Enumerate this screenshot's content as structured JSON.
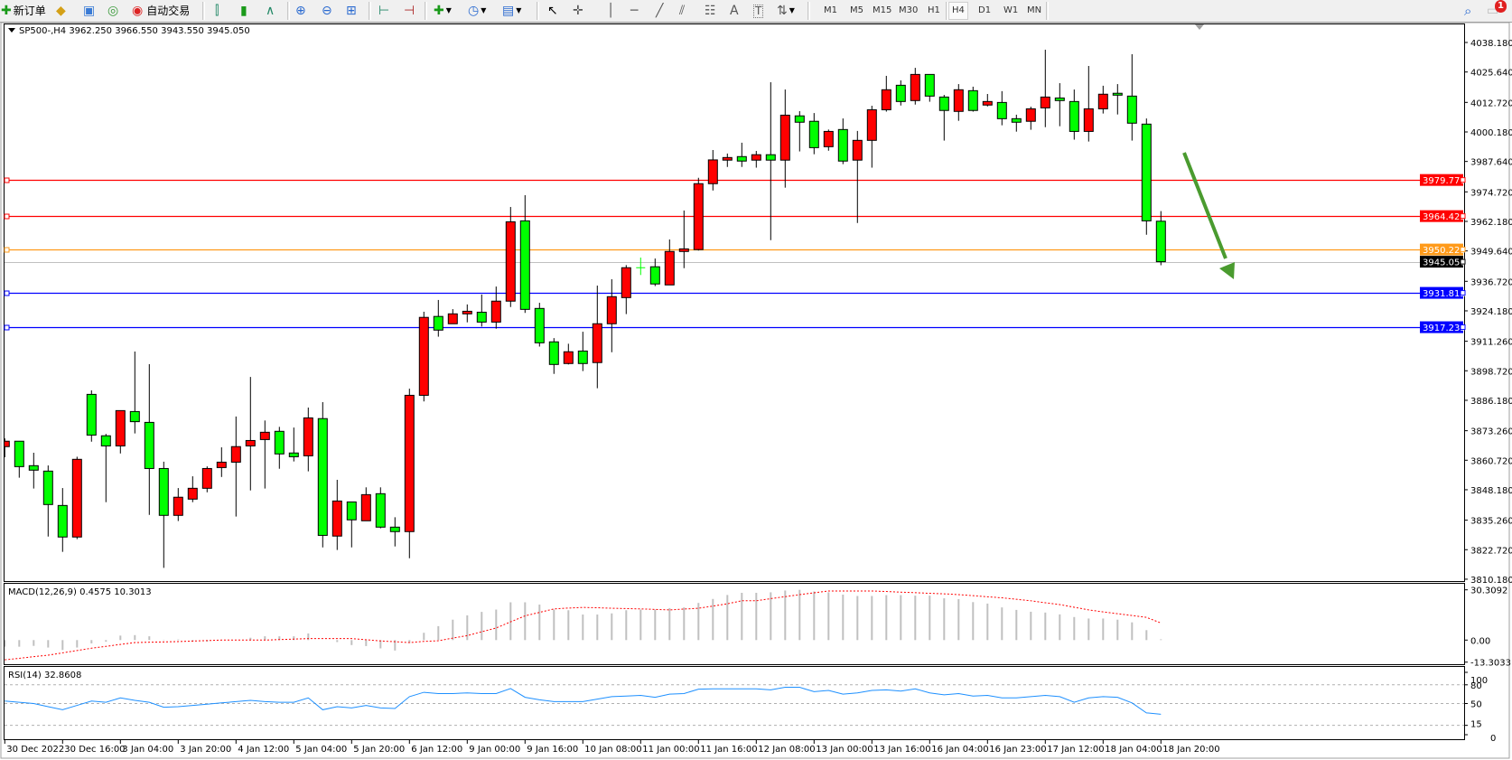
{
  "toolbar": {
    "new_order_label": "新订单",
    "auto_trading_label": "自动交易",
    "timeframes": [
      "M1",
      "M5",
      "M15",
      "M30",
      "H1",
      "H4",
      "D1",
      "W1",
      "MN"
    ],
    "active_timeframe": "H4",
    "notification_count": "1",
    "text_tool": "A",
    "label_tool": "T"
  },
  "chart": {
    "header": "SP500-,H4  3962.250 3966.550 3943.550 3945.050",
    "colors": {
      "bull": "#ff0000",
      "bear": "#00ff00",
      "outline": "#000000",
      "arrow": "#4a9b2f"
    },
    "price_ticks": [
      "4038.180",
      "4025.640",
      "4012.720",
      "4000.180",
      "3987.640",
      "3974.720",
      "3962.180",
      "3949.640",
      "3936.720",
      "3924.180",
      "3911.260",
      "3898.720",
      "3886.180",
      "3873.260",
      "3860.720",
      "3848.180",
      "3835.260",
      "3822.720",
      "3810.180"
    ],
    "levels": [
      {
        "price": "3979.770",
        "color": "#ff0000",
        "text_color": "#ffffff"
      },
      {
        "price": "3964.423",
        "color": "#ff0000",
        "text_color": "#ffffff"
      },
      {
        "price": "3950.228",
        "color": "#ff9a1a",
        "text_color": "#ffffff"
      },
      {
        "price": "3931.812",
        "color": "#0000ff",
        "text_color": "#ffffff"
      },
      {
        "price": "3917.233",
        "color": "#0000ff",
        "text_color": "#ffffff"
      }
    ],
    "bid": {
      "price": "3945.050",
      "line_color": "#c0c0c0",
      "label_bg": "#000000"
    },
    "time_labels": [
      "30 Dec 2022",
      "30 Dec 16:00",
      "3 Jan 04:00",
      "3 Jan 20:00",
      "4 Jan 12:00",
      "5 Jan 04:00",
      "5 Jan 20:00",
      "6 Jan 12:00",
      "9 Jan 00:00",
      "9 Jan 16:00",
      "10 Jan 08:00",
      "11 Jan 00:00",
      "11 Jan 16:00",
      "12 Jan 08:00",
      "13 Jan 00:00",
      "13 Jan 16:00",
      "16 Jan 04:00",
      "16 Jan 23:00",
      "17 Jan 12:00",
      "18 Jan 04:00",
      "18 Jan 20:00"
    ],
    "arrow": {
      "direction": "down",
      "from_price": 3990.5,
      "to_price": 3937.0
    }
  },
  "macd": {
    "label": "MACD(12,26,9) 0.4575 10.3013",
    "axis": [
      "30.3092",
      "0.00",
      "-13.3033"
    ],
    "signal_color": "#ff0000",
    "hist_color": "#c0c0c0"
  },
  "rsi": {
    "label": "RSI(14) 32.8608",
    "axis": [
      "100",
      "80",
      "50",
      "15",
      "0"
    ],
    "line_color": "#1e90ff"
  },
  "chart_data": {
    "type": "candlestick",
    "symbol": "SP500-",
    "timeframe": "H4",
    "ylim": [
      3809.4,
      4045.9
    ],
    "ohlc": [
      [
        3866.5,
        3870.0,
        3862.0,
        3868.8
      ],
      [
        3868.8,
        3868.8,
        3853.3,
        3858.0
      ],
      [
        3858.4,
        3863.9,
        3848.7,
        3856.5
      ],
      [
        3856.1,
        3858.5,
        3828.3,
        3841.9
      ],
      [
        3841.5,
        3848.9,
        3821.8,
        3828.1
      ],
      [
        3828.1,
        3862.2,
        3827.2,
        3861.1
      ],
      [
        3888.7,
        3890.4,
        3868.6,
        3871.4
      ],
      [
        3871.1,
        3871.9,
        3842.9,
        3866.8
      ],
      [
        3866.8,
        3881.8,
        3863.6,
        3881.8
      ],
      [
        3881.4,
        3906.9,
        3872.1,
        3877.1
      ],
      [
        3876.8,
        3901.5,
        3837.5,
        3857.2
      ],
      [
        3857.2,
        3860.1,
        3815.0,
        3837.3
      ],
      [
        3837.3,
        3848.9,
        3834.9,
        3845.0
      ],
      [
        3844.2,
        3853.9,
        3842.9,
        3848.8
      ],
      [
        3848.8,
        3858.1,
        3847.1,
        3857.2
      ],
      [
        3857.6,
        3866.2,
        3853.6,
        3859.9
      ],
      [
        3859.9,
        3879.3,
        3836.8,
        3866.5
      ],
      [
        3866.8,
        3896.1,
        3847.9,
        3869.1
      ],
      [
        3869.5,
        3877.6,
        3848.7,
        3872.6
      ],
      [
        3873.0,
        3874.9,
        3857.1,
        3863.4
      ],
      [
        3863.8,
        3874.6,
        3860.2,
        3862.2
      ],
      [
        3862.6,
        3883.1,
        3856.0,
        3878.7
      ],
      [
        3878.4,
        3885.4,
        3823.7,
        3828.8
      ],
      [
        3828.5,
        3852.4,
        3822.6,
        3843.4
      ],
      [
        3843.0,
        3843.0,
        3823.7,
        3835.4
      ],
      [
        3835.0,
        3849.2,
        3835.0,
        3846.1
      ],
      [
        3846.5,
        3849.2,
        3831.8,
        3832.3
      ],
      [
        3832.3,
        3836.5,
        3824.1,
        3830.4
      ],
      [
        3830.4,
        3891.1,
        3819.1,
        3888.3
      ],
      [
        3888.3,
        3923.8,
        3885.7,
        3921.4
      ],
      [
        3921.8,
        3928.8,
        3913.2,
        3916.0
      ],
      [
        3918.7,
        3924.9,
        3918.7,
        3922.9
      ],
      [
        3922.9,
        3926.9,
        3919.3,
        3924.0
      ],
      [
        3923.6,
        3931.1,
        3917.5,
        3919.4
      ],
      [
        3919.4,
        3934.5,
        3916.6,
        3928.3
      ],
      [
        3928.3,
        3968.3,
        3925.8,
        3962.0
      ],
      [
        3962.4,
        3973.3,
        3923.3,
        3924.8
      ],
      [
        3925.2,
        3927.6,
        3909.0,
        3910.6
      ],
      [
        3911.0,
        3912.6,
        3897.4,
        3901.4
      ],
      [
        3901.8,
        3910.2,
        3901.4,
        3906.8
      ],
      [
        3907.1,
        3915.3,
        3898.6,
        3901.8
      ],
      [
        3902.2,
        3934.9,
        3891.3,
        3918.7
      ],
      [
        3918.7,
        3937.6,
        3906.6,
        3930.2
      ],
      [
        3929.8,
        3943.6,
        3922.8,
        3942.5
      ],
      [
        3942.5,
        3946.8,
        3939.4,
        3942.5
      ],
      [
        3942.9,
        3946.4,
        3934.7,
        3935.6
      ],
      [
        3935.2,
        3954.5,
        3935.2,
        3949.4
      ],
      [
        3949.4,
        3966.8,
        3942.3,
        3950.5
      ],
      [
        3950.2,
        3980.7,
        3949.8,
        3978.2
      ],
      [
        3978.2,
        3992.5,
        3975.3,
        3988.3
      ],
      [
        3988.2,
        3991.0,
        3985.3,
        3989.3
      ],
      [
        3989.7,
        3995.6,
        3985.3,
        3987.8
      ],
      [
        3988.2,
        3992.1,
        3985.0,
        3990.5
      ],
      [
        3990.5,
        4021.3,
        3954.2,
        3988.2
      ],
      [
        3988.2,
        4018.2,
        3976.5,
        4007.3
      ],
      [
        4007.0,
        4009.0,
        3991.9,
        4004.3
      ],
      [
        4004.7,
        4008.2,
        3990.7,
        3993.5
      ],
      [
        3993.9,
        4001.2,
        3992.2,
        4000.4
      ],
      [
        4001.2,
        4005.9,
        3986.5,
        3987.8
      ],
      [
        3988.2,
        4000.6,
        3961.5,
        3996.6
      ],
      [
        3996.6,
        4011.3,
        3985.0,
        4009.6
      ],
      [
        4009.6,
        4024.0,
        4008.8,
        4018.1
      ],
      [
        4020.0,
        4022.1,
        4011.4,
        4013.1
      ],
      [
        4013.5,
        4027.4,
        4011.8,
        4024.6
      ],
      [
        4024.6,
        4024.6,
        4013.0,
        4015.4
      ],
      [
        4015.0,
        4015.9,
        3996.5,
        4009.3
      ],
      [
        4008.9,
        4020.5,
        4004.9,
        4018.1
      ],
      [
        4017.7,
        4019.4,
        4008.8,
        4009.3
      ],
      [
        4011.6,
        4016.3,
        4011.0,
        4013.1
      ],
      [
        4012.7,
        4017.5,
        4003.0,
        4005.8
      ],
      [
        4005.8,
        4007.5,
        4000.3,
        4004.3
      ],
      [
        4004.7,
        4010.9,
        4001.1,
        4010.0
      ],
      [
        4010.4,
        4035.1,
        4002.2,
        4015.0
      ],
      [
        4014.6,
        4020.9,
        4002.6,
        4013.5
      ],
      [
        4013.1,
        4018.2,
        3996.9,
        4000.4
      ],
      [
        4000.4,
        4028.2,
        3996.1,
        4010.0
      ],
      [
        4010.0,
        4019.8,
        4008.0,
        4016.2
      ],
      [
        4016.6,
        4020.5,
        4007.6,
        4015.8
      ],
      [
        4015.4,
        4033.2,
        3996.5,
        4003.9
      ],
      [
        4003.5,
        4005.9,
        3956.5,
        3962.4
      ],
      [
        3962.25,
        3966.55,
        3943.55,
        3945.05
      ]
    ],
    "macd_hist": [
      -4,
      -4,
      -3.5,
      -4.5,
      -6,
      -4.5,
      -2,
      -1,
      2.7,
      3,
      2.3,
      0.2,
      0.4,
      -0.9,
      -0.9,
      0,
      0,
      1.4,
      2.3,
      2.3,
      2.3,
      4,
      0,
      -1.2,
      -3,
      -3.6,
      -5,
      -6.3,
      -1.8,
      4.4,
      8.4,
      12.3,
      14.9,
      17,
      18.4,
      22.8,
      22.8,
      21.4,
      18.4,
      18,
      15.4,
      15.4,
      16.1,
      18,
      18.4,
      18.4,
      19.3,
      19.7,
      22.4,
      24.8,
      27.2,
      28.5,
      28.5,
      28.8,
      29.9,
      30.3,
      29.3,
      28.8,
      27.4,
      26.6,
      26.6,
      27.1,
      27.1,
      26.8,
      26.8,
      25.2,
      24.7,
      22.9,
      22.0,
      19.7,
      18.2,
      17.1,
      16.6,
      15.5,
      13.9,
      13.0,
      13.0,
      12.3,
      10.7,
      6.0,
      0.4575
    ],
    "macd_signal": [
      -11.9,
      -11,
      -10,
      -9.1,
      -7.7,
      -6.3,
      -4.9,
      -3.8,
      -2.6,
      -1.5,
      -1.3,
      -1.1,
      -0.9,
      -0.6,
      -0.3,
      0,
      0,
      0,
      0,
      0.3,
      0.6,
      0.9,
      0.9,
      0.9,
      0.9,
      0.2,
      -0.5,
      -1,
      -1.5,
      -0.8,
      -0.4,
      1.2,
      2.7,
      5,
      7.3,
      11,
      14.6,
      16.7,
      18.8,
      19.3,
      19.7,
      19.5,
      19.2,
      19,
      18.8,
      18.5,
      18.2,
      18.7,
      19.2,
      20.5,
      21.9,
      23.7,
      23.7,
      25,
      26.2,
      27.4,
      28.5,
      29.6,
      29.6,
      29.6,
      29.6,
      29.3,
      28.9,
      28.6,
      28.2,
      27.9,
      27.4,
      26.8,
      26.1,
      25.5,
      24.6,
      23.7,
      22.5,
      21.4,
      19.8,
      18.2,
      17,
      15.9,
      14.8,
      13.7,
      10.3013
    ],
    "rsi": [
      54,
      52,
      50,
      45,
      40,
      47,
      54,
      52,
      59,
      55,
      52,
      44,
      45,
      47,
      49,
      51,
      53,
      55,
      53,
      52,
      52,
      59,
      40,
      45,
      43,
      47,
      43,
      42,
      61,
      68,
      66,
      66,
      67,
      66,
      66,
      74,
      60,
      56,
      53,
      53,
      53,
      57,
      61,
      62,
      63,
      60,
      65,
      66,
      73,
      73.5,
      73.5,
      73.5,
      73.5,
      72,
      76,
      76,
      69,
      71,
      65,
      67,
      71,
      72,
      70,
      73.5,
      67,
      64,
      66,
      62,
      63,
      59,
      59,
      61,
      63,
      61,
      52,
      59,
      61,
      60,
      51,
      35,
      32.8608
    ]
  }
}
